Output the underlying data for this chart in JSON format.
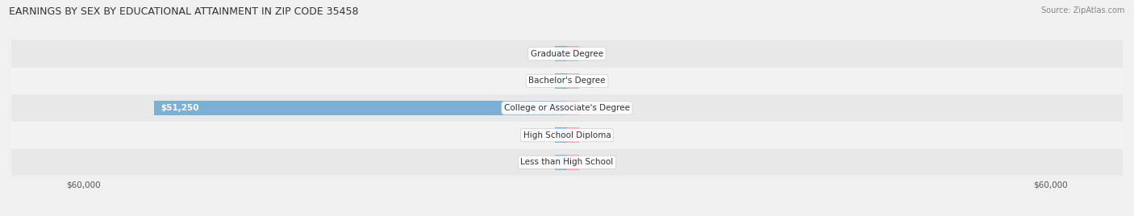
{
  "title": "EARNINGS BY SEX BY EDUCATIONAL ATTAINMENT IN ZIP CODE 35458",
  "source": "Source: ZipAtlas.com",
  "categories": [
    "Less than High School",
    "High School Diploma",
    "College or Associate's Degree",
    "Bachelor's Degree",
    "Graduate Degree"
  ],
  "male_values": [
    0,
    0,
    51250,
    0,
    0
  ],
  "female_values": [
    0,
    0,
    0,
    0,
    0
  ],
  "male_color": "#7bafd4",
  "female_color": "#f4a7b9",
  "xlim": 60000,
  "bar_height": 0.55,
  "title_fontsize": 9,
  "label_fontsize": 7.5,
  "tick_fontsize": 7.5,
  "legend_fontsize": 8
}
